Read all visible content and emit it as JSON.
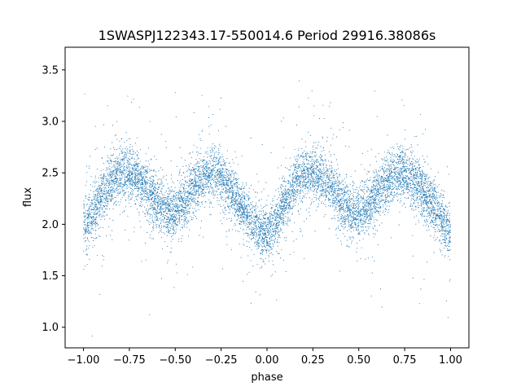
{
  "chart_data": {
    "type": "scatter",
    "title": "1SWASPJ122343.17-550014.6 Period 29916.38086s",
    "xlabel": "phase",
    "ylabel": "flux",
    "xlim": [
      -1.1,
      1.1
    ],
    "ylim": [
      0.8,
      3.72
    ],
    "x_ticks": [
      -1.0,
      -0.75,
      -0.5,
      -0.25,
      0.0,
      0.25,
      0.5,
      0.75,
      1.0
    ],
    "x_tick_labels": [
      "−1.00",
      "−0.75",
      "−0.50",
      "−0.25",
      "0.00",
      "0.25",
      "0.50",
      "0.75",
      "1.00"
    ],
    "y_ticks": [
      1.0,
      1.5,
      2.0,
      2.5,
      3.0,
      3.5
    ],
    "y_tick_labels": [
      "1.0",
      "1.5",
      "2.0",
      "2.5",
      "3.0",
      "3.5"
    ],
    "grid": false,
    "legend": "none",
    "marker_color": "#1f77b4",
    "series": [
      {
        "x": [
          -1.0,
          -0.95,
          -0.9,
          -0.85,
          -0.8,
          -0.75,
          -0.7,
          -0.65,
          -0.6,
          -0.55,
          -0.5,
          -0.45,
          -0.4,
          -0.35,
          -0.3,
          -0.25,
          -0.2,
          -0.15,
          -0.1,
          -0.05,
          0.0,
          0.05,
          0.1,
          0.15,
          0.2,
          0.25,
          0.3,
          0.35,
          0.4,
          0.45,
          0.5,
          0.55,
          0.6,
          0.65,
          0.7,
          0.75,
          0.8,
          0.85,
          0.9,
          0.95,
          1.0
        ],
        "y": [
          1.95,
          2.1,
          2.28,
          2.4,
          2.5,
          2.5,
          2.45,
          2.33,
          2.2,
          2.12,
          2.12,
          2.22,
          2.35,
          2.45,
          2.5,
          2.45,
          2.33,
          2.2,
          2.08,
          1.97,
          1.92,
          2.02,
          2.2,
          2.38,
          2.48,
          2.5,
          2.48,
          2.38,
          2.22,
          2.13,
          2.1,
          2.18,
          2.3,
          2.42,
          2.48,
          2.5,
          2.42,
          2.32,
          2.2,
          2.05,
          1.93
        ]
      }
    ]
  }
}
